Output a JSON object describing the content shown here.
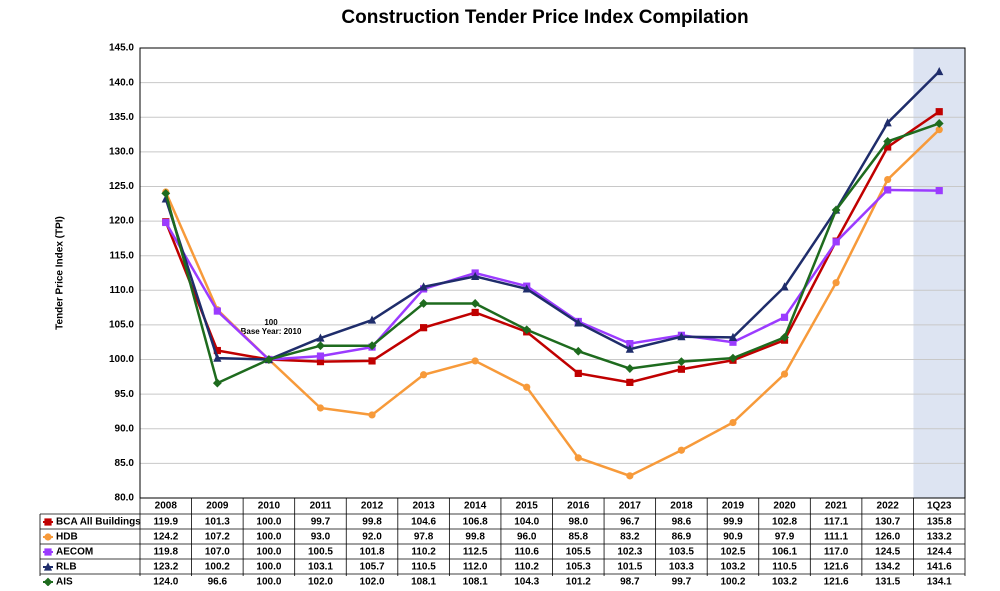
{
  "chart_data": {
    "type": "line",
    "title": "Construction Tender Price Index Compilation",
    "y_label": "Tender Price Index (TPI)",
    "annotations": [
      "100",
      "Base Year: 2010"
    ],
    "categories": [
      "2008",
      "2009",
      "2010",
      "2011",
      "2012",
      "2013",
      "2014",
      "2015",
      "2016",
      "2017",
      "2018",
      "2019",
      "2020",
      "2021",
      "2022",
      "1Q23"
    ],
    "highlight_color": "#dde4f2",
    "series": [
      {
        "name": "BCA All Buildings",
        "color": "#c00000",
        "marker": "square",
        "values": [
          119.9,
          101.3,
          100,
          99.7,
          99.8,
          104.6,
          106.8,
          104,
          98,
          96.7,
          98.6,
          99.9,
          102.8,
          117.1,
          130.7,
          135.8
        ],
        "value_labels": [
          "119.9",
          "101.3",
          "100.0",
          "99.7",
          "99.8",
          "104.6",
          "106.8",
          "104.0",
          "98.0",
          "96.7",
          "98.6",
          "99.9",
          "102.8",
          "117.1",
          "130.7",
          "135.8"
        ]
      },
      {
        "name": "HDB",
        "color": "#f79a3a",
        "marker": "circle",
        "values": [
          124.2,
          107.2,
          100,
          93,
          92,
          97.8,
          99.8,
          96,
          85.8,
          83.2,
          86.9,
          90.9,
          97.9,
          111.1,
          126,
          133.2
        ],
        "value_labels": [
          "124.2",
          "107.2",
          "100.0",
          "93.0",
          "92.0",
          "97.8",
          "99.8",
          "96.0",
          "85.8",
          "83.2",
          "86.9",
          "90.9",
          "97.9",
          "111.1",
          "126.0",
          "133.2"
        ]
      },
      {
        "name": "AECOM",
        "color": "#9b3bff",
        "marker": "square",
        "values": [
          119.8,
          107,
          100,
          100.5,
          101.8,
          110.2,
          112.5,
          110.6,
          105.5,
          102.3,
          103.5,
          102.5,
          106.1,
          117,
          124.5,
          124.4
        ],
        "value_labels": [
          "119.8",
          "107.0",
          "100.0",
          "100.5",
          "101.8",
          "110.2",
          "112.5",
          "110.6",
          "105.5",
          "102.3",
          "103.5",
          "102.5",
          "106.1",
          "117.0",
          "124.5",
          "124.4"
        ]
      },
      {
        "name": "RLB",
        "color": "#1f2d6b",
        "marker": "triangle",
        "values": [
          123.2,
          100.2,
          100,
          103.1,
          105.7,
          110.5,
          112,
          110.2,
          105.3,
          101.5,
          103.3,
          103.2,
          110.5,
          121.6,
          134.2,
          141.6
        ],
        "value_labels": [
          "123.2",
          "100.2",
          "100.0",
          "103.1",
          "105.7",
          "110.5",
          "112.0",
          "110.2",
          "105.3",
          "101.5",
          "103.3",
          "103.2",
          "110.5",
          "121.6",
          "134.2",
          "141.6"
        ]
      },
      {
        "name": "AIS",
        "color": "#1e6b1e",
        "marker": "diamond",
        "values": [
          124,
          96.6,
          100,
          102,
          102,
          108.1,
          108.1,
          104.3,
          101.2,
          98.7,
          99.7,
          100.2,
          103.2,
          121.6,
          131.5,
          134.1
        ],
        "value_labels": [
          "124.0",
          "96.6",
          "100.0",
          "102.0",
          "102.0",
          "108.1",
          "108.1",
          "104.3",
          "101.2",
          "98.7",
          "99.7",
          "100.2",
          "103.2",
          "121.6",
          "131.5",
          "134.1"
        ]
      }
    ],
    "ylim": [
      80,
      145
    ],
    "yticks": [
      {
        "value": 80,
        "label": "80.0"
      },
      {
        "value": 85,
        "label": "85.0"
      },
      {
        "value": 90,
        "label": "90.0"
      },
      {
        "value": 95,
        "label": "95.0"
      },
      {
        "value": 100,
        "label": "100.0"
      },
      {
        "value": 105,
        "label": "105.0"
      },
      {
        "value": 110,
        "label": "110.0"
      },
      {
        "value": 115,
        "label": "115.0"
      },
      {
        "value": 120,
        "label": "120.0"
      },
      {
        "value": 125,
        "label": "125.0"
      },
      {
        "value": 130,
        "label": "130.0"
      },
      {
        "value": 135,
        "label": "135.0"
      },
      {
        "value": 140,
        "label": "140.0"
      },
      {
        "value": 145,
        "label": "145.0"
      }
    ],
    "grid": true
  }
}
